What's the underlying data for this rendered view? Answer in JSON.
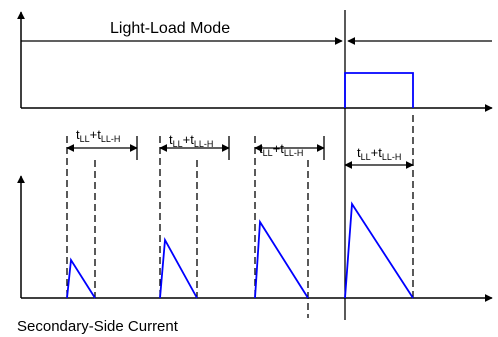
{
  "labels": {
    "mode": "Light-Load Mode",
    "current": "Secondary-Side Current",
    "interval_base": "t",
    "interval_sub1": "LL",
    "interval_plus": "+t",
    "interval_sub2": "LL-H"
  },
  "colors": {
    "line": "#000000",
    "signal": "#0000ff",
    "background": "#ffffff"
  }
}
